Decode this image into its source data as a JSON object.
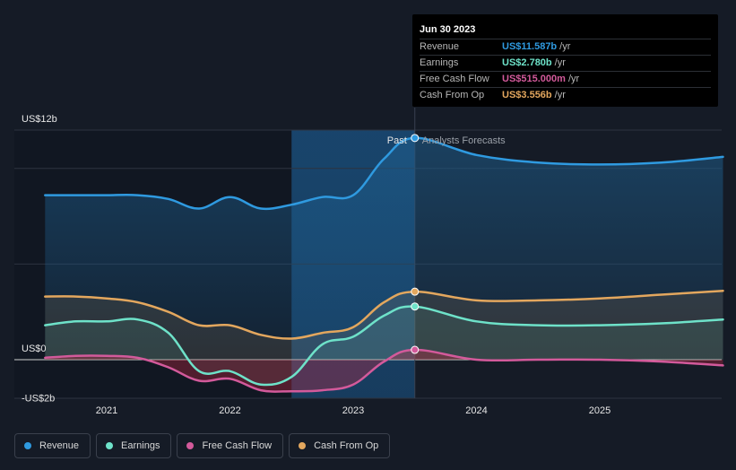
{
  "tooltip": {
    "date": "Jun 30 2023",
    "rows": [
      {
        "label": "Revenue",
        "value": "US$11.587b",
        "unit": "/yr",
        "color": "#2f9ae0"
      },
      {
        "label": "Earnings",
        "value": "US$2.780b",
        "unit": "/yr",
        "color": "#6ee2c9"
      },
      {
        "label": "Free Cash Flow",
        "value": "US$515.000m",
        "unit": "/yr",
        "color": "#d35a9b"
      },
      {
        "label": "Cash From Op",
        "value": "US$3.556b",
        "unit": "/yr",
        "color": "#e3a75e"
      }
    ]
  },
  "chart_data": {
    "type": "line",
    "title": "",
    "y_unit": "US$ billions",
    "ylim": [
      -2.4,
      12
    ],
    "xlim": [
      2020.3,
      2026.0
    ],
    "y_tick_labels": [
      {
        "value": 12,
        "label": "US$12b"
      },
      {
        "value": 0,
        "label": "US$0"
      },
      {
        "value": -2,
        "label": "-US$2b"
      }
    ],
    "x_tick_labels": [
      {
        "value": 2021,
        "label": "2021"
      },
      {
        "value": 2022,
        "label": "2022"
      },
      {
        "value": 2023,
        "label": "2023"
      },
      {
        "value": 2024,
        "label": "2024"
      },
      {
        "value": 2025,
        "label": "2025"
      }
    ],
    "past_label": "Past",
    "forecast_label": "Analysts Forecasts",
    "divider_x": 2023.5,
    "highlight_start_x": 2022.5,
    "series": [
      {
        "name": "Revenue",
        "color": "#2f9ae0",
        "x": [
          2020.5,
          2020.75,
          2021.0,
          2021.25,
          2021.5,
          2021.75,
          2022.0,
          2022.25,
          2022.5,
          2022.75,
          2023.0,
          2023.25,
          2023.5,
          2024.0,
          2024.5,
          2025.0,
          2025.5,
          2026.0
        ],
        "values": [
          8.6,
          8.6,
          8.6,
          8.6,
          8.4,
          7.9,
          8.5,
          7.9,
          8.1,
          8.5,
          8.6,
          10.5,
          11.587,
          10.7,
          10.3,
          10.2,
          10.3,
          10.6
        ]
      },
      {
        "name": "Earnings",
        "color": "#6ee2c9",
        "x": [
          2020.5,
          2020.75,
          2021.0,
          2021.25,
          2021.5,
          2021.75,
          2022.0,
          2022.25,
          2022.5,
          2022.75,
          2023.0,
          2023.25,
          2023.5,
          2024.0,
          2024.5,
          2025.0,
          2025.5,
          2026.0
        ],
        "values": [
          1.8,
          2.0,
          2.0,
          2.1,
          1.4,
          -0.6,
          -0.6,
          -1.3,
          -0.9,
          0.8,
          1.2,
          2.3,
          2.78,
          2.0,
          1.8,
          1.8,
          1.9,
          2.1
        ]
      },
      {
        "name": "Free Cash Flow",
        "color": "#d35a9b",
        "x": [
          2020.5,
          2020.75,
          2021.0,
          2021.25,
          2021.5,
          2021.75,
          2022.0,
          2022.25,
          2022.5,
          2022.75,
          2023.0,
          2023.25,
          2023.5,
          2024.0,
          2024.5,
          2025.0,
          2025.5,
          2026.0
        ],
        "values": [
          0.1,
          0.2,
          0.2,
          0.1,
          -0.4,
          -1.1,
          -1.0,
          -1.6,
          -1.65,
          -1.6,
          -1.3,
          -0.1,
          0.515,
          0.0,
          0.0,
          0.0,
          -0.1,
          -0.3
        ]
      },
      {
        "name": "Cash From Op",
        "color": "#e3a75e",
        "x": [
          2020.5,
          2020.75,
          2021.0,
          2021.25,
          2021.5,
          2021.75,
          2022.0,
          2022.25,
          2022.5,
          2022.75,
          2023.0,
          2023.25,
          2023.5,
          2024.0,
          2024.5,
          2025.0,
          2025.5,
          2026.0
        ],
        "values": [
          3.3,
          3.3,
          3.2,
          3.0,
          2.5,
          1.8,
          1.8,
          1.3,
          1.1,
          1.4,
          1.7,
          3.0,
          3.556,
          3.1,
          3.1,
          3.2,
          3.4,
          3.6
        ]
      }
    ]
  },
  "legend": [
    {
      "label": "Revenue",
      "color": "#2f9ae0"
    },
    {
      "label": "Earnings",
      "color": "#6ee2c9"
    },
    {
      "label": "Free Cash Flow",
      "color": "#d35a9b"
    },
    {
      "label": "Cash From Op",
      "color": "#e3a75e"
    }
  ]
}
